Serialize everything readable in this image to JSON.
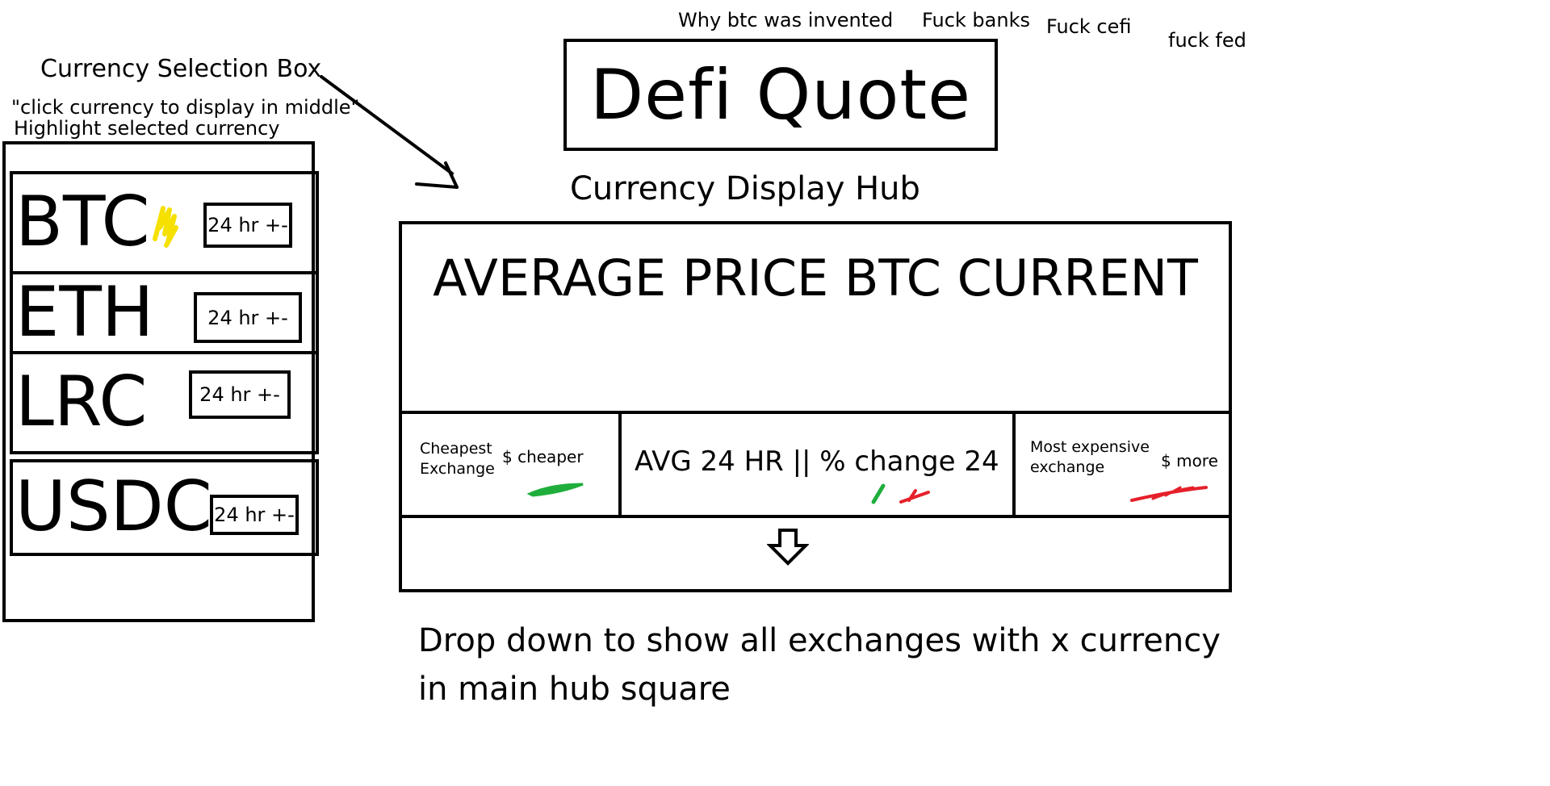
{
  "notes": {
    "why_btc": "Why btc was invented",
    "fuck_banks": "Fuck banks",
    "fuck_cefi": "Fuck cefi",
    "fuck_fed": "fuck fed"
  },
  "logo": {
    "title": "Defi Quote"
  },
  "selection": {
    "title": "Currency Selection Box",
    "instruction": "\"click currency to display in middle\"",
    "highlight_note": "Highlight selected currency",
    "items": [
      {
        "code": "BTC",
        "change_label": "24 hr +-",
        "selected": true
      },
      {
        "code": "ETH",
        "change_label": "24 hr +-",
        "selected": false
      },
      {
        "code": "LRC",
        "change_label": "24 hr +-",
        "selected": false
      },
      {
        "code": "USDC",
        "change_label": "24 hr +-",
        "selected": false
      }
    ],
    "highlight_color": "#f5e000"
  },
  "hub": {
    "title": "Currency Display Hub",
    "price_label": "AVERAGE PRICE BTC CURRENT",
    "cheapest_label": "Cheapest Exchange",
    "cheapest_value": "$ cheaper",
    "avg_label": "AVG 24 HR || % change 24",
    "expensive_label": "Most expensive exchange",
    "expensive_value": "$ more",
    "dropdown_icon": "arrow-down-icon",
    "dropdown_note": "Drop down to show all exchanges with x currency in main hub square"
  },
  "colors": {
    "positive": "#1fae3c",
    "negative": "#e5202a",
    "ink": "#000000"
  }
}
